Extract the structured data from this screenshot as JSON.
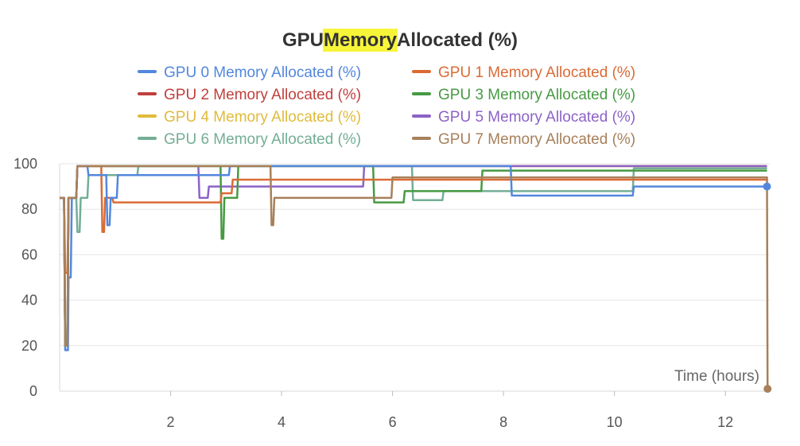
{
  "chart_data": {
    "type": "line",
    "title": {
      "before": "GPU ",
      "highlight": "Memory",
      "after": " Allocated (%)"
    },
    "highlight_color": "#f7f53a",
    "xlabel": "Time (hours)",
    "ylabel": "",
    "xlim": [
      0,
      12.8
    ],
    "ylim": [
      0,
      100
    ],
    "xticks": [
      2,
      4,
      6,
      8,
      10,
      12
    ],
    "yticks": [
      0,
      20,
      40,
      60,
      80,
      100
    ],
    "grid": true,
    "legend_position": "top",
    "series": [
      {
        "name": "GPU 0 Memory Allocated (%)",
        "color": "#5387dd",
        "points": [
          [
            0,
            85
          ],
          [
            0.08,
            85
          ],
          [
            0.1,
            18
          ],
          [
            0.15,
            18
          ],
          [
            0.16,
            50
          ],
          [
            0.2,
            50
          ],
          [
            0.22,
            85
          ],
          [
            0.3,
            85
          ],
          [
            0.32,
            99
          ],
          [
            0.5,
            99
          ],
          [
            0.52,
            95
          ],
          [
            0.84,
            95
          ],
          [
            0.86,
            73
          ],
          [
            0.9,
            73
          ],
          [
            0.92,
            85
          ],
          [
            1.03,
            85
          ],
          [
            1.05,
            95
          ],
          [
            3.05,
            95
          ],
          [
            3.07,
            99
          ],
          [
            8.13,
            99
          ],
          [
            8.15,
            86
          ],
          [
            10.33,
            86
          ],
          [
            10.35,
            90
          ],
          [
            12.75,
            90
          ]
        ],
        "end_marker": true
      },
      {
        "name": "GPU 1 Memory Allocated (%)",
        "color": "#da6b35",
        "points": [
          [
            0,
            85
          ],
          [
            0.08,
            85
          ],
          [
            0.1,
            52
          ],
          [
            0.14,
            52
          ],
          [
            0.16,
            85
          ],
          [
            0.3,
            85
          ],
          [
            0.32,
            99
          ],
          [
            0.75,
            99
          ],
          [
            0.77,
            70
          ],
          [
            0.8,
            70
          ],
          [
            0.82,
            85
          ],
          [
            0.95,
            85
          ],
          [
            0.97,
            83
          ],
          [
            2.9,
            83
          ],
          [
            2.92,
            87
          ],
          [
            3.1,
            87
          ],
          [
            3.12,
            93
          ],
          [
            12.75,
            93
          ]
        ],
        "end_marker": false
      },
      {
        "name": "GPU 2 Memory Allocated (%)",
        "color": "#c0403d",
        "points": [
          [
            0,
            85
          ],
          [
            0.08,
            85
          ],
          [
            0.1,
            20
          ],
          [
            0.14,
            20
          ],
          [
            0.16,
            85
          ],
          [
            0.3,
            85
          ],
          [
            0.32,
            99
          ],
          [
            12.75,
            99
          ]
        ],
        "end_marker": false
      },
      {
        "name": "GPU 3 Memory Allocated (%)",
        "color": "#479a43",
        "points": [
          [
            0,
            85
          ],
          [
            0.08,
            85
          ],
          [
            0.1,
            20
          ],
          [
            0.14,
            20
          ],
          [
            0.16,
            85
          ],
          [
            0.3,
            85
          ],
          [
            0.32,
            99
          ],
          [
            2.9,
            99
          ],
          [
            2.92,
            67
          ],
          [
            2.95,
            67
          ],
          [
            2.97,
            85
          ],
          [
            3.2,
            85
          ],
          [
            3.22,
            99
          ],
          [
            5.65,
            99
          ],
          [
            5.67,
            83
          ],
          [
            6.2,
            83
          ],
          [
            6.22,
            88
          ],
          [
            7.6,
            88
          ],
          [
            7.62,
            97
          ],
          [
            12.75,
            97
          ]
        ],
        "end_marker": false
      },
      {
        "name": "GPU 4 Memory Allocated (%)",
        "color": "#e0bb3c",
        "points": [
          [
            0,
            85
          ],
          [
            0.08,
            85
          ],
          [
            0.1,
            20
          ],
          [
            0.14,
            20
          ],
          [
            0.16,
            85
          ],
          [
            0.3,
            85
          ],
          [
            0.32,
            99
          ],
          [
            12.75,
            99
          ]
        ],
        "end_marker": false
      },
      {
        "name": "GPU 5 Memory Allocated (%)",
        "color": "#8c62c7",
        "points": [
          [
            0,
            85
          ],
          [
            0.08,
            85
          ],
          [
            0.1,
            20
          ],
          [
            0.14,
            20
          ],
          [
            0.16,
            85
          ],
          [
            0.3,
            85
          ],
          [
            0.32,
            99
          ],
          [
            2.5,
            99
          ],
          [
            2.52,
            85
          ],
          [
            2.67,
            85
          ],
          [
            2.69,
            90
          ],
          [
            5.47,
            90
          ],
          [
            5.49,
            99
          ],
          [
            12.75,
            99
          ]
        ],
        "end_marker": false
      },
      {
        "name": "GPU 6 Memory Allocated (%)",
        "color": "#73ae95",
        "points": [
          [
            0,
            85
          ],
          [
            0.08,
            85
          ],
          [
            0.1,
            20
          ],
          [
            0.14,
            20
          ],
          [
            0.16,
            85
          ],
          [
            0.3,
            85
          ],
          [
            0.32,
            70
          ],
          [
            0.36,
            70
          ],
          [
            0.38,
            85
          ],
          [
            0.5,
            85
          ],
          [
            0.52,
            95
          ],
          [
            1.4,
            95
          ],
          [
            1.42,
            99
          ],
          [
            6.35,
            99
          ],
          [
            6.37,
            84
          ],
          [
            6.9,
            84
          ],
          [
            6.92,
            88
          ],
          [
            10.33,
            88
          ],
          [
            10.35,
            98
          ],
          [
            12.75,
            98
          ]
        ],
        "end_marker": false
      },
      {
        "name": "GPU 7 Memory Allocated (%)",
        "color": "#a8805a",
        "points": [
          [
            0,
            85
          ],
          [
            0.08,
            85
          ],
          [
            0.1,
            20
          ],
          [
            0.14,
            20
          ],
          [
            0.16,
            85
          ],
          [
            0.3,
            85
          ],
          [
            0.32,
            99
          ],
          [
            3.8,
            99
          ],
          [
            3.82,
            73
          ],
          [
            3.85,
            73
          ],
          [
            3.87,
            85
          ],
          [
            5.98,
            85
          ],
          [
            6.0,
            94
          ],
          [
            12.75,
            94
          ],
          [
            12.76,
            1
          ]
        ],
        "end_marker": true
      }
    ]
  }
}
